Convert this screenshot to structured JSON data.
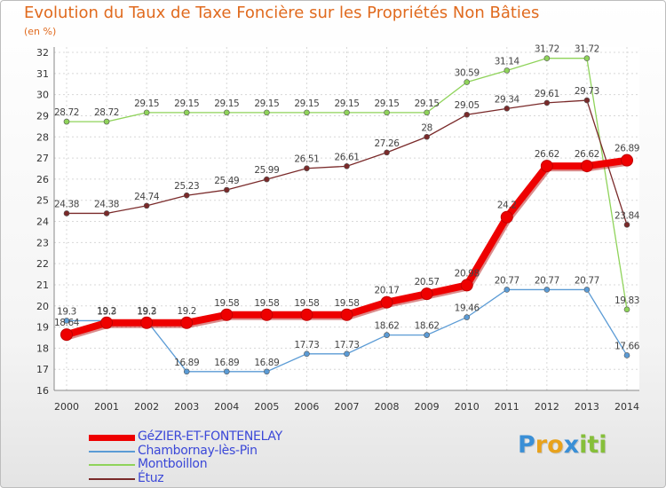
{
  "title": "Evolution du Taux de Taxe Foncière sur les Propriétés Non Bâties",
  "unit": "(en %)",
  "logo": {
    "letters": [
      {
        "ch": "P",
        "color": "#3a8fd6"
      },
      {
        "ch": "r",
        "color": "#e8a21c"
      },
      {
        "ch": "o",
        "color": "#e8a21c"
      },
      {
        "ch": "x",
        "color": "#3a8fd6"
      },
      {
        "ch": "i",
        "color": "#86bf3a"
      },
      {
        "ch": "t",
        "color": "#86bf3a"
      },
      {
        "ch": "i",
        "color": "#86bf3a"
      }
    ]
  },
  "chart_data": {
    "type": "line",
    "title": "Evolution du Taux de Taxe Foncière sur les Propriétés Non Bâties",
    "ylabel": "(en %)",
    "xlabel": "",
    "x": [
      "2000",
      "2001",
      "2002",
      "2003",
      "2004",
      "2005",
      "2006",
      "2007",
      "2008",
      "2009",
      "2010",
      "2011",
      "2012",
      "2013",
      "2014"
    ],
    "ylim": [
      16,
      32
    ],
    "yticks": [
      16,
      17,
      18,
      19,
      20,
      21,
      22,
      23,
      24,
      25,
      26,
      27,
      28,
      29,
      30,
      31,
      32
    ],
    "grid": true,
    "legend_position": "bottom-left",
    "series": [
      {
        "name": "GéZIER-ET-FONTENELAY",
        "color": "#ee0000",
        "emphasis": true,
        "values": [
          18.64,
          19.2,
          19.2,
          19.2,
          19.58,
          19.58,
          19.58,
          19.58,
          20.17,
          20.57,
          20.98,
          24.2,
          26.62,
          26.62,
          26.89
        ],
        "labels": [
          "18.64",
          "19.2",
          "19.2",
          "19.2",
          "19.58",
          "19.58",
          "19.58",
          "19.58",
          "20.17",
          "20.57",
          "20.98",
          "24.2",
          "26.62",
          "26.62",
          "26.89"
        ]
      },
      {
        "name": "Chambornay-lès-Pin",
        "color": "#5b9bd5",
        "emphasis": false,
        "values": [
          19.3,
          19.3,
          19.3,
          16.89,
          16.89,
          16.89,
          17.73,
          17.73,
          18.62,
          18.62,
          19.46,
          20.77,
          20.77,
          20.77,
          17.66
        ],
        "labels": [
          "19.3",
          "19.3",
          "19.3",
          "16.89",
          "16.89",
          "16.89",
          "17.73",
          "17.73",
          "18.62",
          "18.62",
          "19.46",
          "20.77",
          "20.77",
          "20.77",
          "17.66"
        ]
      },
      {
        "name": "Montboillon",
        "color": "#8fd35a",
        "emphasis": false,
        "values": [
          28.72,
          28.72,
          29.15,
          29.15,
          29.15,
          29.15,
          29.15,
          29.15,
          29.15,
          29.15,
          30.59,
          31.14,
          31.72,
          31.72,
          19.83
        ],
        "labels": [
          "28.72",
          "28.72",
          "29.15",
          "29.15",
          "29.15",
          "29.15",
          "29.15",
          "29.15",
          "29.15",
          "29.15",
          "30.59",
          "31.14",
          "31.72",
          "31.72",
          "19.83"
        ]
      },
      {
        "name": "Étuz",
        "color": "#7a2a2a",
        "emphasis": false,
        "values": [
          24.38,
          24.38,
          24.74,
          25.23,
          25.49,
          25.99,
          26.51,
          26.61,
          27.26,
          28,
          29.05,
          29.34,
          29.61,
          29.73,
          23.84
        ],
        "labels": [
          "24.38",
          "24.38",
          "24.74",
          "25.23",
          "25.49",
          "25.99",
          "26.51",
          "26.61",
          "27.26",
          "28",
          "29.05",
          "29.34",
          "29.61",
          "29.73",
          "23.84"
        ]
      }
    ]
  }
}
